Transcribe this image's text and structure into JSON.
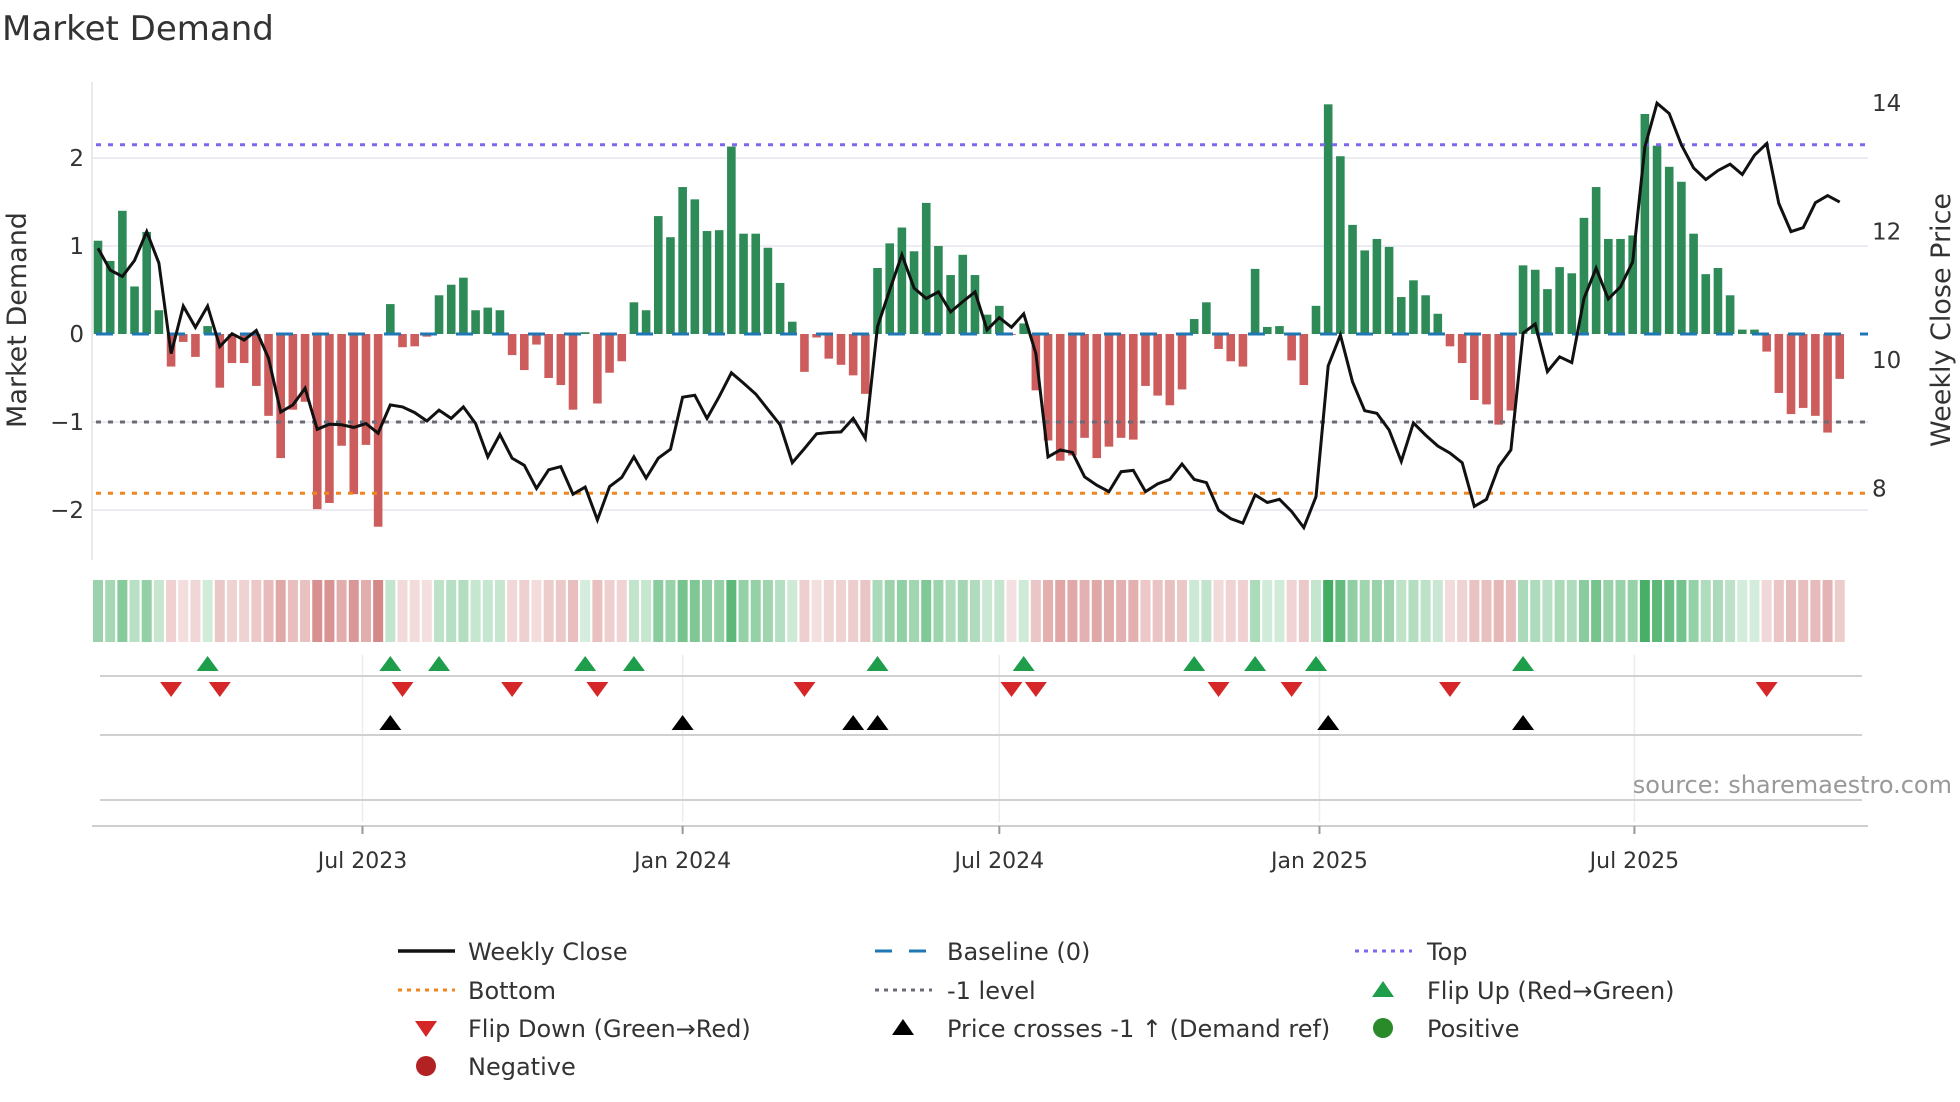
{
  "title": "Market Demand",
  "source": "source: sharemaestro.com",
  "colors": {
    "bar_positive": "#2e8b57",
    "bar_negative": "#cd5c5c",
    "price_line": "#111111",
    "baseline": "#1f77b4",
    "top": "#7b68ee",
    "bottom": "#f0861f",
    "minus_one": "#6b6b78",
    "flip_up": "#1e9e4a",
    "flip_down": "#d62728",
    "price_cross": "#000000",
    "positive": "#2a8a2a",
    "negative": "#b22222"
  },
  "chart_data": {
    "type": "bar",
    "title": "Market Demand",
    "ylabel": "Market Demand",
    "y2label": "Weekly Close Price",
    "ylim": [
      -2.5,
      2.9
    ],
    "y2lim": [
      7.2,
      14.2
    ],
    "first_week": "2023-01-30",
    "interval_days": 7,
    "y_ticks": [
      {
        "v": 2,
        "label": "2"
      },
      {
        "v": 1,
        "label": "1"
      },
      {
        "v": 0,
        "label": "0"
      },
      {
        "v": -1,
        "label": "−1"
      },
      {
        "v": -2,
        "label": "−2"
      }
    ],
    "y2_ticks": [
      {
        "v": 14,
        "label": "14"
      },
      {
        "v": 12,
        "label": "12"
      },
      {
        "v": 10,
        "label": "10"
      },
      {
        "v": 8,
        "label": "8"
      }
    ],
    "x_ticks": [
      {
        "date": "2023-07-01",
        "label": "Jul 2023"
      },
      {
        "date": "2024-01-01",
        "label": "Jan 2024"
      },
      {
        "date": "2024-07-01",
        "label": "Jul 2024"
      },
      {
        "date": "2025-01-01",
        "label": "Jan 2025"
      },
      {
        "date": "2025-07-01",
        "label": "Jul 2025"
      }
    ],
    "levels": {
      "top": 2.15,
      "bottom": -1.81,
      "minus_one": -1,
      "baseline": 0
    },
    "demand": [
      1.06,
      0.83,
      1.4,
      0.54,
      1.16,
      0.27,
      -0.37,
      -0.09,
      -0.26,
      0.09,
      -0.61,
      -0.33,
      -0.33,
      -0.59,
      -0.93,
      -1.41,
      -0.86,
      -0.77,
      -1.99,
      -1.92,
      -1.27,
      -1.82,
      -1.26,
      -2.19,
      0.34,
      -0.15,
      -0.14,
      -0.03,
      0.44,
      0.56,
      0.64,
      0.27,
      0.3,
      0.27,
      -0.24,
      -0.41,
      -0.12,
      -0.5,
      -0.58,
      -0.86,
      0.02,
      -0.79,
      -0.44,
      -0.31,
      0.36,
      0.27,
      1.34,
      1.1,
      1.67,
      1.53,
      1.17,
      1.18,
      2.13,
      1.14,
      1.14,
      0.98,
      0.58,
      0.14,
      -0.43,
      -0.04,
      -0.28,
      -0.35,
      -0.47,
      -0.68,
      0.75,
      1.03,
      1.21,
      0.94,
      1.49,
      1.0,
      0.67,
      0.9,
      0.67,
      0.22,
      0.32,
      -0.01,
      0.12,
      -0.64,
      -1.21,
      -1.44,
      -1.38,
      -1.18,
      -1.41,
      -1.28,
      -1.18,
      -1.2,
      -0.59,
      -0.7,
      -0.81,
      -0.63,
      0.17,
      0.36,
      -0.17,
      -0.31,
      -0.37,
      0.74,
      0.08,
      0.09,
      -0.3,
      -0.58,
      0.32,
      2.61,
      2.02,
      1.24,
      0.95,
      1.08,
      0.99,
      0.42,
      0.61,
      0.44,
      0.23,
      -0.14,
      -0.33,
      -0.75,
      -0.8,
      -1.03,
      -0.87,
      0.78,
      0.73,
      0.51,
      0.76,
      0.69,
      1.32,
      1.67,
      1.08,
      1.08,
      1.12,
      2.5,
      2.14,
      1.9,
      1.73,
      1.14,
      0.68,
      0.75,
      0.44,
      0.05,
      0.05,
      -0.2,
      -0.67,
      -0.91,
      -0.84,
      -0.93,
      -1.12,
      -0.51
    ],
    "weekly_close": [
      11.74,
      11.4,
      11.3,
      11.55,
      12.0,
      11.51,
      10.1,
      10.84,
      10.51,
      10.84,
      10.21,
      10.41,
      10.31,
      10.46,
      10.03,
      9.19,
      9.3,
      9.56,
      8.92,
      9.0,
      8.99,
      8.95,
      9.01,
      8.86,
      9.3,
      9.27,
      9.18,
      9.05,
      9.22,
      9.09,
      9.27,
      9.01,
      8.49,
      8.84,
      8.47,
      8.36,
      8.0,
      8.29,
      8.34,
      7.91,
      8.02,
      7.51,
      8.03,
      8.17,
      8.49,
      8.16,
      8.47,
      8.61,
      9.42,
      9.45,
      9.09,
      9.43,
      9.8,
      9.64,
      9.47,
      9.23,
      8.99,
      8.4,
      8.62,
      8.85,
      8.87,
      8.88,
      9.09,
      8.78,
      10.52,
      11.09,
      11.64,
      11.12,
      10.96,
      11.06,
      10.75,
      10.91,
      11.06,
      10.47,
      10.66,
      10.51,
      10.72,
      10.1,
      8.49,
      8.6,
      8.56,
      8.18,
      8.05,
      7.95,
      8.26,
      8.28,
      7.95,
      8.07,
      8.14,
      8.38,
      8.14,
      8.09,
      7.66,
      7.53,
      7.46,
      7.9,
      7.78,
      7.83,
      7.64,
      7.39,
      7.87,
      9.91,
      10.39,
      9.66,
      9.21,
      9.17,
      8.91,
      8.42,
      9.02,
      8.83,
      8.66,
      8.55,
      8.4,
      7.72,
      7.83,
      8.34,
      8.6,
      10.42,
      10.56,
      9.82,
      10.05,
      9.96,
      10.96,
      11.43,
      10.95,
      11.14,
      11.53,
      13.32,
      14.0,
      13.84,
      13.35,
      12.99,
      12.81,
      12.95,
      13.05,
      12.89,
      13.19,
      13.37,
      12.44,
      12.0,
      12.06,
      12.45,
      12.56,
      12.46
    ],
    "flip_up_weeks": [
      10,
      25,
      29,
      41,
      45,
      65,
      77,
      91,
      96,
      101,
      118
    ],
    "flip_down_weeks": [
      7,
      11,
      26,
      35,
      42,
      59,
      76,
      78,
      93,
      99,
      112,
      138
    ],
    "price_cross_weeks": [
      25,
      49,
      63,
      65,
      102,
      118
    ],
    "legend": [
      {
        "label": "Weekly Close",
        "kind": "line"
      },
      {
        "label": "Baseline (0)",
        "kind": "baseline"
      },
      {
        "label": "Top",
        "kind": "top"
      },
      {
        "label": "Bottom",
        "kind": "bottom"
      },
      {
        "label": "-1 level",
        "kind": "minus_one"
      },
      {
        "label": "Flip Up (Red→Green)",
        "kind": "flip_up"
      },
      {
        "label": "Flip Down (Green→Red)",
        "kind": "flip_down"
      },
      {
        "label": "Price crosses -1 ↑ (Demand ref)",
        "kind": "price_cross"
      },
      {
        "label": "Positive",
        "kind": "positive"
      },
      {
        "label": "Negative",
        "kind": "negative"
      }
    ],
    "legend_placement": "bottom"
  }
}
